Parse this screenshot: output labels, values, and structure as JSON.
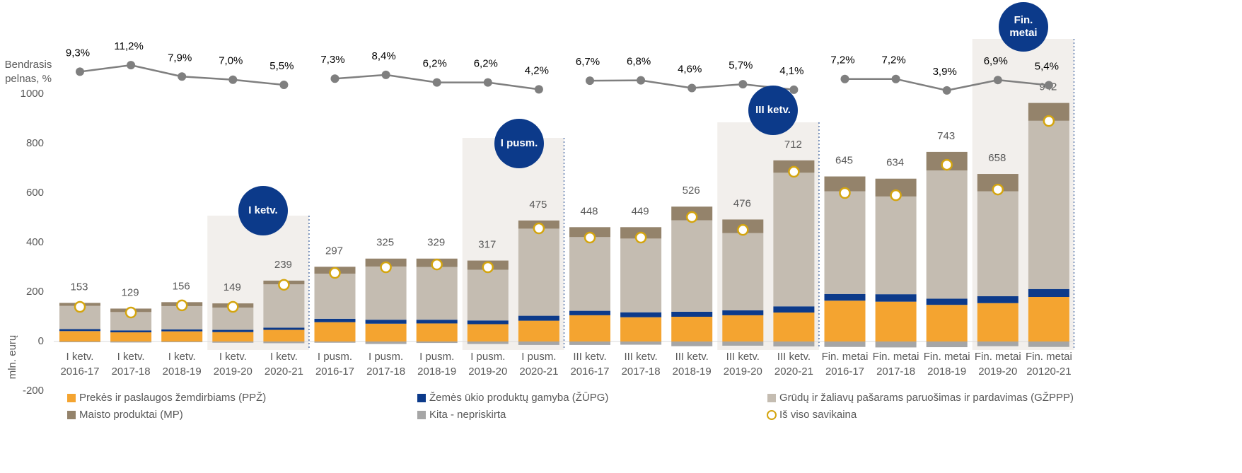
{
  "chart_data": {
    "type": "bar",
    "categories": [
      [
        "I ketv.",
        "2016-17"
      ],
      [
        "I ketv.",
        "2017-18"
      ],
      [
        "I ketv.",
        "2018-19"
      ],
      [
        "I ketv.",
        "2019-20"
      ],
      [
        "I ketv.",
        "2020-21"
      ],
      [
        "I pusm.",
        "2016-17"
      ],
      [
        "I pusm.",
        "2017-18"
      ],
      [
        "I pusm.",
        "2018-19"
      ],
      [
        "I pusm.",
        "2019-20"
      ],
      [
        "I pusm.",
        "2020-21"
      ],
      [
        "III ketv.",
        "2016-17"
      ],
      [
        "III ketv.",
        "2017-18"
      ],
      [
        "III ketv.",
        "2018-19"
      ],
      [
        "III ketv.",
        "2019-20"
      ],
      [
        "III ketv.",
        "2020-21"
      ],
      [
        "Fin. metai",
        "2016-17"
      ],
      [
        "Fin. metai",
        "2017-18"
      ],
      [
        "Fin. metai",
        "2018-19"
      ],
      [
        "Fin. metai",
        "2019-20"
      ],
      [
        "Fin. metai",
        "20120-21"
      ]
    ],
    "series": [
      {
        "name": "Prekės ir paslaugos žemdirbiams (PPŽ)",
        "color": "#f4a430",
        "kind": "bar",
        "values": [
          42,
          37,
          41,
          38,
          47,
          78,
          72,
          73,
          70,
          84,
          106,
          98,
          100,
          106,
          117,
          165,
          161,
          148,
          155,
          180
        ]
      },
      {
        "name": "Žemės ūkio produktų gamyba (ŽŪPG)",
        "color": "#0c3a8a",
        "kind": "bar",
        "values": [
          8,
          8,
          8,
          9,
          9,
          14,
          16,
          15,
          15,
          20,
          18,
          20,
          20,
          20,
          25,
          27,
          30,
          25,
          28,
          32
        ]
      },
      {
        "name": "Grūdų ir žaliavų pašarams paruošimas ir pardavimas (GŽPPP)",
        "color": "#c4bcb1",
        "kind": "bar",
        "values": [
          94,
          74,
          94,
          90,
          175,
          182,
          215,
          213,
          205,
          352,
          298,
          298,
          370,
          312,
          540,
          415,
          395,
          518,
          424,
          680
        ]
      },
      {
        "name": "Maisto produktai (MP)",
        "color": "#94836b",
        "kind": "bar",
        "values": [
          12,
          14,
          16,
          17,
          15,
          28,
          32,
          34,
          37,
          33,
          40,
          46,
          55,
          55,
          50,
          60,
          72,
          75,
          70,
          72
        ]
      },
      {
        "name": "Kita - nepriskirta",
        "color": "#a6a6a6",
        "kind": "bar",
        "values": [
          -3,
          -4,
          -3,
          -5,
          -7,
          -5,
          -10,
          -6,
          -10,
          -14,
          -14,
          -13,
          -19,
          -17,
          -20,
          -22,
          -24,
          -23,
          -19,
          -22
        ]
      },
      {
        "name": "Iš viso savikaina",
        "color": "#d4a50f",
        "kind": "marker",
        "values": [
          140,
          117,
          146,
          140,
          229,
          277,
          300,
          311,
          300,
          457,
          420,
          420,
          503,
          451,
          686,
          600,
          591,
          714,
          614,
          891
        ]
      },
      {
        "color": "#7f7f7f",
        "kind": "line",
        "axis": "y2",
        "values": [
          9.3,
          11.2,
          7.9,
          7.0,
          5.5,
          7.3,
          8.4,
          6.2,
          6.2,
          4.2,
          6.7,
          6.8,
          4.6,
          5.7,
          4.1,
          7.2,
          7.2,
          3.9,
          6.9,
          5.4
        ],
        "value_labels": [
          "9,3%",
          "11,2%",
          "7,9%",
          "7,0%",
          "5,5%",
          "7,3%",
          "8,4%",
          "6,2%",
          "6,2%",
          "4,2%",
          "6,7%",
          "6,8%",
          "4,6%",
          "5,7%",
          "4,1%",
          "7,2%",
          "7,2%",
          "3,9%",
          "6,9%",
          "5,4%"
        ]
      }
    ],
    "totals": [
      153,
      129,
      156,
      149,
      239,
      297,
      325,
      329,
      317,
      475,
      448,
      449,
      526,
      476,
      712,
      645,
      634,
      743,
      658,
      942
    ],
    "ylabel": "mln. eurų",
    "y2label": [
      "Bendrasis",
      "pelnas, %"
    ],
    "ylim": [
      -200,
      1000
    ],
    "yticks": [
      -200,
      0,
      200,
      400,
      600,
      800,
      1000
    ],
    "y2lim": [
      0,
      12
    ],
    "annotations": [
      [
        "I ketv."
      ],
      [
        "I pusm."
      ],
      [
        "III ketv."
      ],
      [
        "Fin.",
        "metai"
      ]
    ]
  }
}
